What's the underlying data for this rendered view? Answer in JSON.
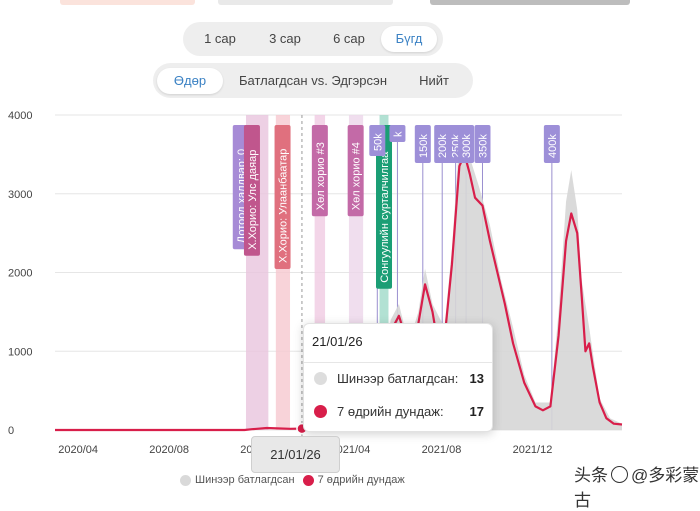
{
  "range_tabs": {
    "items": [
      "1 сар",
      "3 сар",
      "6 сар",
      "Бүгд"
    ],
    "active": 3
  },
  "view_tabs": {
    "items": [
      "Өдөр",
      "Батлагдсан vs. Эдгэрсэн",
      "Нийт"
    ],
    "active": 0
  },
  "chart_data": {
    "type": "bar",
    "x_ticks": [
      "2020/04",
      "2020/08",
      "2020/12",
      "2021/04",
      "2021/08",
      "2021/12"
    ],
    "y_ticks": [
      "0",
      "1000",
      "2000",
      "3000",
      "4000"
    ],
    "ylim": [
      0,
      4000
    ],
    "x_range": [
      "2020/03/01",
      "2022/03/31"
    ],
    "series": [
      {
        "name": "Шинээр батлагдсан",
        "color": "#cccccc"
      },
      {
        "name": "7 өдрийн дундаж",
        "color": "#d81e4a"
      }
    ],
    "avg_points": [
      [
        "2020/03/01",
        0
      ],
      [
        "2020/11/10",
        0
      ],
      [
        "2020/11/20",
        10
      ],
      [
        "2020/12/10",
        25
      ],
      [
        "2021/01/10",
        15
      ],
      [
        "2021/01/26",
        17
      ],
      [
        "2021/03/01",
        35
      ],
      [
        "2021/04/01",
        70
      ],
      [
        "2021/04/20",
        200
      ],
      [
        "2021/05/05",
        400
      ],
      [
        "2021/05/15",
        650
      ],
      [
        "2021/05/25",
        1250
      ],
      [
        "2021/06/05",
        1450
      ],
      [
        "2021/06/18",
        1050
      ],
      [
        "2021/07/01",
        1350
      ],
      [
        "2021/07/10",
        1850
      ],
      [
        "2021/07/20",
        1500
      ],
      [
        "2021/07/28",
        1050
      ],
      [
        "2021/08/05",
        1150
      ],
      [
        "2021/08/15",
        2100
      ],
      [
        "2021/08/25",
        3350
      ],
      [
        "2021/09/01",
        3500
      ],
      [
        "2021/09/08",
        3250
      ],
      [
        "2021/09/15",
        2950
      ],
      [
        "2021/09/25",
        2850
      ],
      [
        "2021/10/05",
        2400
      ],
      [
        "2021/10/15",
        2000
      ],
      [
        "2021/10/25",
        1600
      ],
      [
        "2021/11/05",
        1100
      ],
      [
        "2021/11/20",
        600
      ],
      [
        "2021/12/05",
        300
      ],
      [
        "2021/12/15",
        250
      ],
      [
        "2021/12/25",
        300
      ],
      [
        "2022/01/05",
        1200
      ],
      [
        "2022/01/15",
        2400
      ],
      [
        "2022/01/22",
        2750
      ],
      [
        "2022/01/30",
        2500
      ],
      [
        "2022/02/05",
        1700
      ],
      [
        "2022/02/10",
        1000
      ],
      [
        "2022/02/15",
        1100
      ],
      [
        "2022/02/20",
        800
      ],
      [
        "2022/03/01",
        350
      ],
      [
        "2022/03/10",
        150
      ],
      [
        "2022/03/20",
        80
      ],
      [
        "2022/03/31",
        70
      ]
    ],
    "daily_points": [
      [
        "2021/04/15",
        150
      ],
      [
        "2021/05/01",
        450
      ],
      [
        "2021/05/15",
        800
      ],
      [
        "2021/05/25",
        1400
      ],
      [
        "2021/06/05",
        1600
      ],
      [
        "2021/06/18",
        1100
      ],
      [
        "2021/07/01",
        1500
      ],
      [
        "2021/07/10",
        2050
      ],
      [
        "2021/07/20",
        1600
      ],
      [
        "2021/08/05",
        1300
      ],
      [
        "2021/08/15",
        2300
      ],
      [
        "2021/08/25",
        3700
      ],
      [
        "2021/09/01",
        3850
      ],
      [
        "2021/09/10",
        3400
      ],
      [
        "2021/09/20",
        3100
      ],
      [
        "2021/10/05",
        2600
      ],
      [
        "2021/10/20",
        1900
      ],
      [
        "2021/11/05",
        1300
      ],
      [
        "2021/11/20",
        700
      ],
      [
        "2021/12/05",
        350
      ],
      [
        "2021/12/25",
        350
      ],
      [
        "2022/01/05",
        1500
      ],
      [
        "2022/01/15",
        2900
      ],
      [
        "2022/01/22",
        3300
      ],
      [
        "2022/01/30",
        2800
      ],
      [
        "2022/02/05",
        1900
      ],
      [
        "2022/02/15",
        1300
      ],
      [
        "2022/03/01",
        400
      ],
      [
        "2022/03/15",
        150
      ],
      [
        "2022/03/31",
        80
      ]
    ],
    "event_bands": [
      {
        "start": "2020/11/12",
        "end": "2020/12/12",
        "color": "#e8c4dd"
      },
      {
        "start": "2020/12/22",
        "end": "2021/01/10",
        "color": "#f6c8cf"
      },
      {
        "start": "2021/02/12",
        "end": "2021/02/26",
        "color": "#f0cbe2"
      },
      {
        "start": "2021/03/30",
        "end": "2021/04/18",
        "color": "#ecd6ea"
      },
      {
        "start": "2021/05/10",
        "end": "2021/05/22",
        "color": "#9fd9c8"
      }
    ],
    "event_labels": [
      {
        "text": "Дотоод халдвар: 0",
        "date": "2020/11/05",
        "color": "#a78bd6"
      },
      {
        "text": "Х.Хорио: Улс даяар",
        "date": "2020/11/20",
        "color": "#c0568d"
      },
      {
        "text": "Х.Хорио: Улаанбаатар",
        "date": "2020/12/31",
        "color": "#e0707e"
      },
      {
        "text": "Хөл хорио #3",
        "date": "2021/02/19",
        "color": "#c36aa7"
      },
      {
        "text": "Хөл хорио #4",
        "date": "2021/04/08",
        "color": "#c36aa7"
      },
      {
        "text": "Сонгуулийн сурталчилгаа",
        "date": "2021/05/16",
        "color": "#1b9e75"
      }
    ],
    "milestone_labels": [
      {
        "text": "50k",
        "date": "2021/05/07"
      },
      {
        "text": "k",
        "date": "2021/06/03"
      },
      {
        "text": "150k",
        "date": "2021/07/07"
      },
      {
        "text": "200k",
        "date": "2021/08/02"
      },
      {
        "text": "250k",
        "date": "2021/08/20"
      },
      {
        "text": "300k",
        "date": "2021/09/03"
      },
      {
        "text": "350k",
        "date": "2021/09/25"
      },
      {
        "text": "400k",
        "date": "2021/12/27"
      }
    ],
    "hover_date": "2021/01/26"
  },
  "tooltip": {
    "date": "21/01/26",
    "rows": [
      {
        "label": "Шинээр батлагдсан:",
        "value": "13",
        "color": "#dddddd"
      },
      {
        "label": "7 өдрийн дундаж:",
        "value": "17",
        "color": "#d81e4a"
      }
    ]
  },
  "x_badge": "21/01/26",
  "legend": [
    {
      "label": "Шинээр батлагдсан",
      "color": "#d9d9d9"
    },
    {
      "label": "7 өдрийн дундаж",
      "color": "#d81e4a"
    }
  ],
  "watermark": {
    "prefix": "头条",
    "suffix": "@多彩蒙古"
  }
}
